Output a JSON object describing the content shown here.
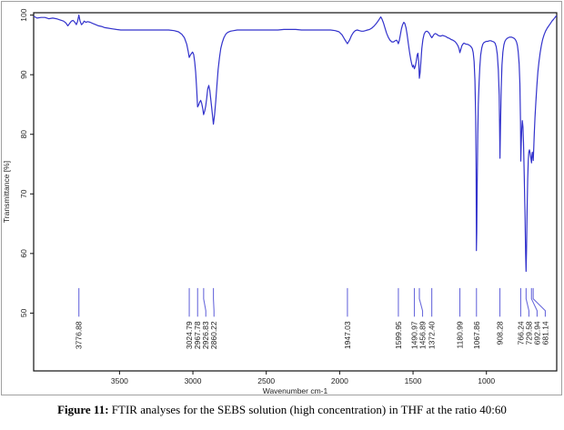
{
  "figure": {
    "caption_prefix": "Figure 11:",
    "caption_text": " FTIR analyses for the SEBS solution (high concentration) in THF at the ratio 40:60"
  },
  "chart_data": {
    "type": "line",
    "title": "",
    "xlabel": "Wavenumber cm-1",
    "ylabel": "Transmittance [%]",
    "x_axis": {
      "min": 521,
      "max": 4085,
      "reversed": true,
      "ticks": [
        3500,
        3000,
        2500,
        2000,
        1500,
        1000
      ]
    },
    "y_axis": {
      "min": 40.3,
      "max": 100.4,
      "ticks": [
        50,
        60,
        70,
        80,
        90,
        100
      ]
    },
    "grid": false,
    "legend": "none",
    "line_color": "#3333cc",
    "marker_color": "#6b6bdc",
    "frame_color": "#111111",
    "text_color": "#222222",
    "peak_labels": [
      "3776.88",
      "3024.79",
      "2967.78",
      "2926.83",
      "2860.22",
      "1947.03",
      "1599.95",
      "1490.97",
      "1456.89",
      "1372.40",
      "1180.99",
      "1067.86",
      "908.28",
      "766.24",
      "729.58",
      "692.94",
      "681.14"
    ],
    "peak_marker_top": 54.2,
    "peak_marker_bottom": 49.4,
    "series": [
      {
        "name": "SEBS solution (high concentration) in THF 40:60",
        "points": [
          [
            4085,
            99.8
          ],
          [
            4062,
            99.5
          ],
          [
            4035,
            99.6
          ],
          [
            4008,
            99.6
          ],
          [
            3982,
            99.4
          ],
          [
            3955,
            99.5
          ],
          [
            3930,
            99.4
          ],
          [
            3905,
            99.2
          ],
          [
            3882,
            99.0
          ],
          [
            3866,
            98.7
          ],
          [
            3852,
            98.2
          ],
          [
            3840,
            98.6
          ],
          [
            3828,
            99.0
          ],
          [
            3816,
            99.1
          ],
          [
            3804,
            98.8
          ],
          [
            3794,
            98.4
          ],
          [
            3786,
            98.9
          ],
          [
            3777,
            100.0
          ],
          [
            3769,
            99.0
          ],
          [
            3759,
            98.4
          ],
          [
            3750,
            98.6
          ],
          [
            3741,
            99.0
          ],
          [
            3729,
            98.8
          ],
          [
            3716,
            98.9
          ],
          [
            3700,
            98.8
          ],
          [
            3682,
            98.6
          ],
          [
            3663,
            98.4
          ],
          [
            3643,
            98.2
          ],
          [
            3622,
            98.1
          ],
          [
            3600,
            97.9
          ],
          [
            3576,
            97.8
          ],
          [
            3551,
            97.7
          ],
          [
            3522,
            97.6
          ],
          [
            3492,
            97.5
          ],
          [
            3455,
            97.5
          ],
          [
            3415,
            97.5
          ],
          [
            3372,
            97.5
          ],
          [
            3330,
            97.5
          ],
          [
            3288,
            97.5
          ],
          [
            3246,
            97.5
          ],
          [
            3204,
            97.5
          ],
          [
            3165,
            97.5
          ],
          [
            3128,
            97.4
          ],
          [
            3098,
            97.2
          ],
          [
            3076,
            96.8
          ],
          [
            3058,
            96.2
          ],
          [
            3042,
            95.1
          ],
          [
            3032,
            93.9
          ],
          [
            3025,
            92.9
          ],
          [
            3017,
            93.3
          ],
          [
            3009,
            93.6
          ],
          [
            3002,
            93.8
          ],
          [
            2995,
            93.4
          ],
          [
            2988,
            92.2
          ],
          [
            2981,
            90.4
          ],
          [
            2974,
            87.6
          ],
          [
            2968,
            84.6
          ],
          [
            2961,
            84.9
          ],
          [
            2954,
            85.4
          ],
          [
            2947,
            85.7
          ],
          [
            2940,
            85.2
          ],
          [
            2933,
            84.3
          ],
          [
            2927,
            83.3
          ],
          [
            2920,
            83.9
          ],
          [
            2913,
            84.7
          ],
          [
            2906,
            86.0
          ],
          [
            2899,
            87.6
          ],
          [
            2892,
            88.2
          ],
          [
            2885,
            87.4
          ],
          [
            2877,
            85.6
          ],
          [
            2868,
            83.6
          ],
          [
            2860,
            81.7
          ],
          [
            2852,
            83.3
          ],
          [
            2844,
            85.6
          ],
          [
            2836,
            88.3
          ],
          [
            2828,
            90.9
          ],
          [
            2819,
            92.9
          ],
          [
            2810,
            94.4
          ],
          [
            2800,
            95.4
          ],
          [
            2789,
            96.2
          ],
          [
            2776,
            96.8
          ],
          [
            2762,
            97.1
          ],
          [
            2744,
            97.3
          ],
          [
            2722,
            97.4
          ],
          [
            2698,
            97.5
          ],
          [
            2660,
            97.5
          ],
          [
            2620,
            97.5
          ],
          [
            2580,
            97.5
          ],
          [
            2540,
            97.5
          ],
          [
            2500,
            97.5
          ],
          [
            2460,
            97.5
          ],
          [
            2420,
            97.5
          ],
          [
            2380,
            97.6
          ],
          [
            2340,
            97.6
          ],
          [
            2300,
            97.6
          ],
          [
            2260,
            97.5
          ],
          [
            2220,
            97.5
          ],
          [
            2180,
            97.5
          ],
          [
            2140,
            97.5
          ],
          [
            2100,
            97.5
          ],
          [
            2062,
            97.5
          ],
          [
            2030,
            97.4
          ],
          [
            2004,
            97.2
          ],
          [
            1984,
            96.7
          ],
          [
            1965,
            95.9
          ],
          [
            1947,
            95.2
          ],
          [
            1933,
            95.8
          ],
          [
            1919,
            96.6
          ],
          [
            1906,
            97.1
          ],
          [
            1893,
            97.4
          ],
          [
            1880,
            97.5
          ],
          [
            1866,
            97.4
          ],
          [
            1852,
            97.3
          ],
          [
            1838,
            97.3
          ],
          [
            1824,
            97.4
          ],
          [
            1810,
            97.5
          ],
          [
            1796,
            97.6
          ],
          [
            1782,
            97.8
          ],
          [
            1768,
            98.1
          ],
          [
            1754,
            98.5
          ],
          [
            1741,
            98.9
          ],
          [
            1730,
            99.3
          ],
          [
            1720,
            99.7
          ],
          [
            1711,
            99.3
          ],
          [
            1702,
            98.7
          ],
          [
            1692,
            97.9
          ],
          [
            1681,
            97.0
          ],
          [
            1669,
            96.3
          ],
          [
            1657,
            95.8
          ],
          [
            1645,
            95.5
          ],
          [
            1633,
            95.5
          ],
          [
            1622,
            95.7
          ],
          [
            1612,
            95.8
          ],
          [
            1605,
            95.5
          ],
          [
            1600,
            95.2
          ],
          [
            1594,
            95.7
          ],
          [
            1587,
            96.6
          ],
          [
            1579,
            97.7
          ],
          [
            1571,
            98.4
          ],
          [
            1563,
            98.8
          ],
          [
            1556,
            98.6
          ],
          [
            1548,
            97.9
          ],
          [
            1540,
            96.7
          ],
          [
            1532,
            95.2
          ],
          [
            1524,
            93.8
          ],
          [
            1516,
            92.6
          ],
          [
            1509,
            91.8
          ],
          [
            1503,
            91.3
          ],
          [
            1497,
            91.6
          ],
          [
            1491,
            91.0
          ],
          [
            1485,
            91.4
          ],
          [
            1478,
            92.3
          ],
          [
            1472,
            93.3
          ],
          [
            1467,
            93.6
          ],
          [
            1461,
            92.2
          ],
          [
            1457,
            89.4
          ],
          [
            1452,
            90.3
          ],
          [
            1446,
            92.4
          ],
          [
            1440,
            94.4
          ],
          [
            1433,
            95.9
          ],
          [
            1425,
            96.8
          ],
          [
            1416,
            97.2
          ],
          [
            1407,
            97.3
          ],
          [
            1398,
            97.2
          ],
          [
            1389,
            96.9
          ],
          [
            1380,
            96.5
          ],
          [
            1372,
            96.2
          ],
          [
            1364,
            96.5
          ],
          [
            1356,
            96.8
          ],
          [
            1348,
            96.9
          ],
          [
            1339,
            96.8
          ],
          [
            1329,
            96.6
          ],
          [
            1319,
            96.5
          ],
          [
            1309,
            96.5
          ],
          [
            1299,
            96.6
          ],
          [
            1288,
            96.5
          ],
          [
            1276,
            96.4
          ],
          [
            1264,
            96.2
          ],
          [
            1252,
            96.1
          ],
          [
            1240,
            95.9
          ],
          [
            1228,
            95.8
          ],
          [
            1216,
            95.6
          ],
          [
            1205,
            95.3
          ],
          [
            1195,
            94.9
          ],
          [
            1187,
            94.4
          ],
          [
            1181,
            93.7
          ],
          [
            1175,
            94.2
          ],
          [
            1168,
            94.8
          ],
          [
            1161,
            95.1
          ],
          [
            1153,
            95.3
          ],
          [
            1145,
            95.2
          ],
          [
            1137,
            95.1
          ],
          [
            1129,
            95.1
          ],
          [
            1121,
            95.0
          ],
          [
            1113,
            94.9
          ],
          [
            1105,
            94.7
          ],
          [
            1097,
            94.4
          ],
          [
            1090,
            93.7
          ],
          [
            1084,
            92.2
          ],
          [
            1078,
            89.0
          ],
          [
            1073,
            83.0
          ],
          [
            1070,
            74.0
          ],
          [
            1068,
            60.5
          ],
          [
            1066,
            63.5
          ],
          [
            1063,
            72.0
          ],
          [
            1059,
            80.0
          ],
          [
            1055,
            85.0
          ],
          [
            1050,
            88.8
          ],
          [
            1045,
            91.4
          ],
          [
            1039,
            93.3
          ],
          [
            1032,
            94.5
          ],
          [
            1025,
            95.1
          ],
          [
            1017,
            95.4
          ],
          [
            1009,
            95.5
          ],
          [
            1000,
            95.6
          ],
          [
            990,
            95.6
          ],
          [
            980,
            95.7
          ],
          [
            970,
            95.7
          ],
          [
            960,
            95.6
          ],
          [
            950,
            95.5
          ],
          [
            941,
            95.3
          ],
          [
            933,
            94.7
          ],
          [
            926,
            93.4
          ],
          [
            919,
            90.8
          ],
          [
            913,
            86.5
          ],
          [
            908,
            76.0
          ],
          [
            904,
            81.5
          ],
          [
            899,
            87.8
          ],
          [
            894,
            91.6
          ],
          [
            888,
            93.8
          ],
          [
            881,
            95.0
          ],
          [
            874,
            95.6
          ],
          [
            867,
            95.9
          ],
          [
            859,
            96.1
          ],
          [
            851,
            96.2
          ],
          [
            843,
            96.3
          ],
          [
            835,
            96.3
          ],
          [
            827,
            96.3
          ],
          [
            819,
            96.2
          ],
          [
            811,
            96.1
          ],
          [
            803,
            95.9
          ],
          [
            795,
            95.5
          ],
          [
            789,
            94.9
          ],
          [
            783,
            93.8
          ],
          [
            777,
            91.8
          ],
          [
            772,
            88.5
          ],
          [
            768,
            82.0
          ],
          [
            766,
            75.5
          ],
          [
            763,
            78.5
          ],
          [
            759,
            81.0
          ],
          [
            755,
            82.3
          ],
          [
            751,
            81.2
          ],
          [
            747,
            78.5
          ],
          [
            742,
            73.0
          ],
          [
            737,
            66.0
          ],
          [
            733,
            60.0
          ],
          [
            730,
            57.0
          ],
          [
            727,
            60.5
          ],
          [
            723,
            67.0
          ],
          [
            719,
            72.5
          ],
          [
            715,
            75.5
          ],
          [
            711,
            77.0
          ],
          [
            707,
            77.4
          ],
          [
            702,
            76.8
          ],
          [
            698,
            76.2
          ],
          [
            693,
            75.2
          ],
          [
            690,
            76.3
          ],
          [
            687,
            77.0
          ],
          [
            684,
            76.4
          ],
          [
            681,
            75.6
          ],
          [
            678,
            77.5
          ],
          [
            674,
            80.0
          ],
          [
            669,
            82.8
          ],
          [
            663,
            85.5
          ],
          [
            656,
            88.2
          ],
          [
            649,
            90.5
          ],
          [
            642,
            92.2
          ],
          [
            634,
            93.7
          ],
          [
            626,
            94.9
          ],
          [
            617,
            95.9
          ],
          [
            607,
            96.7
          ],
          [
            597,
            97.3
          ],
          [
            586,
            97.8
          ],
          [
            575,
            98.2
          ],
          [
            564,
            98.6
          ],
          [
            553,
            99.0
          ],
          [
            542,
            99.3
          ],
          [
            533,
            99.6
          ],
          [
            526,
            99.8
          ],
          [
            521,
            99.9
          ]
        ]
      }
    ]
  }
}
